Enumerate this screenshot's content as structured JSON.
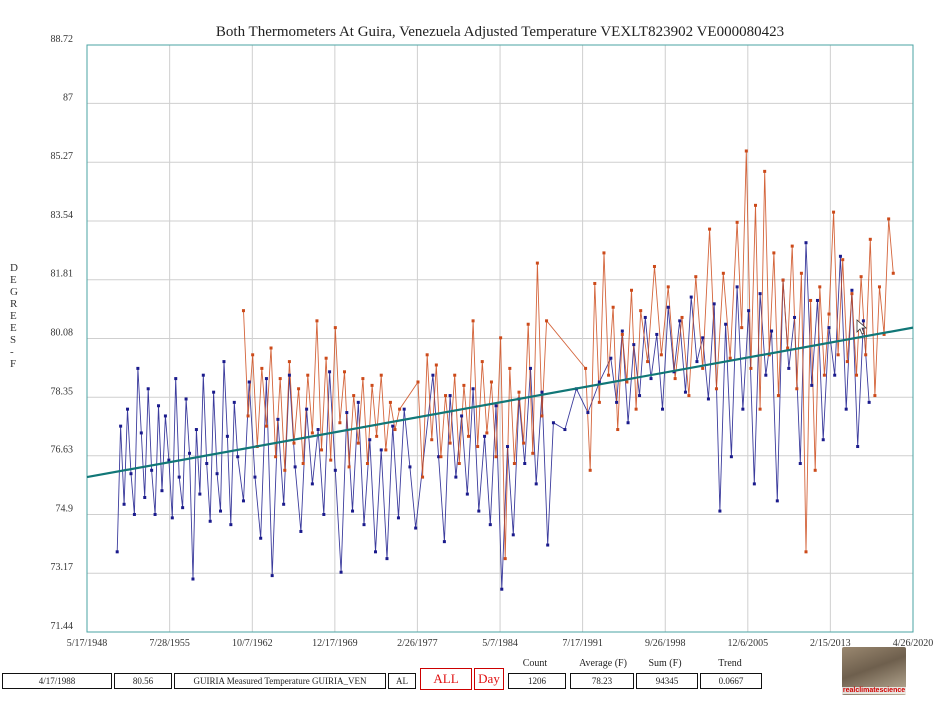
{
  "chart_data": {
    "type": "scatter",
    "title": "Both Thermometers At Guira, Venezuela Adjusted Temperature VEXLT823902 VE000080423",
    "ylabel": "DEGREES - F",
    "ylabel_letters": [
      "D",
      "E",
      "G",
      "R",
      "E",
      "E",
      "S",
      "-",
      "F"
    ],
    "xlabel": "",
    "x_range_years": [
      1948.37,
      2020.32
    ],
    "ylim": [
      71.44,
      88.72
    ],
    "y_ticks": [
      "71.44",
      "73.17",
      "74.9",
      "76.63",
      "78.35",
      "80.08",
      "81.81",
      "83.54",
      "85.27",
      "87",
      "88.72"
    ],
    "x_ticks": [
      {
        "label": "5/17/1948",
        "year": 1948.37
      },
      {
        "label": "7/28/1955",
        "year": 1955.57
      },
      {
        "label": "10/7/1962",
        "year": 1962.77
      },
      {
        "label": "12/17/1969",
        "year": 1969.96
      },
      {
        "label": "2/26/1977",
        "year": 1977.15
      },
      {
        "label": "5/7/1984",
        "year": 1984.35
      },
      {
        "label": "7/17/1991",
        "year": 1991.54
      },
      {
        "label": "9/26/1998",
        "year": 1998.74
      },
      {
        "label": "12/6/2005",
        "year": 2005.93
      },
      {
        "label": "2/15/2013",
        "year": 2013.12
      },
      {
        "label": "4/26/2020",
        "year": 2020.32
      }
    ],
    "grid": true,
    "series": [
      {
        "name": "GUIRIA Measured Temperature GUIRIA_VEN",
        "color": "#1a1a8c",
        "points": [
          [
            1951.0,
            73.8
          ],
          [
            1951.3,
            77.5
          ],
          [
            1951.6,
            75.2
          ],
          [
            1951.9,
            78.0
          ],
          [
            1952.2,
            76.1
          ],
          [
            1952.5,
            74.9
          ],
          [
            1952.8,
            79.2
          ],
          [
            1953.1,
            77.3
          ],
          [
            1953.4,
            75.4
          ],
          [
            1953.7,
            78.6
          ],
          [
            1954.0,
            76.2
          ],
          [
            1954.3,
            74.9
          ],
          [
            1954.6,
            78.1
          ],
          [
            1954.9,
            75.6
          ],
          [
            1955.2,
            77.8
          ],
          [
            1955.5,
            76.5
          ],
          [
            1955.8,
            74.8
          ],
          [
            1956.1,
            78.9
          ],
          [
            1956.4,
            76.0
          ],
          [
            1956.7,
            75.1
          ],
          [
            1957.0,
            78.3
          ],
          [
            1957.3,
            76.7
          ],
          [
            1957.6,
            73.0
          ],
          [
            1957.9,
            77.4
          ],
          [
            1958.2,
            75.5
          ],
          [
            1958.5,
            79.0
          ],
          [
            1958.8,
            76.4
          ],
          [
            1959.1,
            74.7
          ],
          [
            1959.4,
            78.5
          ],
          [
            1959.7,
            76.1
          ],
          [
            1960.0,
            75.0
          ],
          [
            1960.3,
            79.4
          ],
          [
            1960.6,
            77.2
          ],
          [
            1960.9,
            74.6
          ],
          [
            1961.2,
            78.2
          ],
          [
            1961.5,
            76.6
          ],
          [
            1962.0,
            75.3
          ],
          [
            1962.5,
            78.8
          ],
          [
            1963.0,
            76.0
          ],
          [
            1963.5,
            74.2
          ],
          [
            1964.0,
            78.9
          ],
          [
            1964.5,
            73.1
          ],
          [
            1965.0,
            77.7
          ],
          [
            1965.5,
            75.2
          ],
          [
            1966.0,
            79.0
          ],
          [
            1966.5,
            76.3
          ],
          [
            1967.0,
            74.4
          ],
          [
            1967.5,
            78.0
          ],
          [
            1968.0,
            75.8
          ],
          [
            1968.5,
            77.4
          ],
          [
            1969.0,
            74.9
          ],
          [
            1969.5,
            79.1
          ],
          [
            1970.0,
            76.2
          ],
          [
            1970.5,
            73.2
          ],
          [
            1971.0,
            77.9
          ],
          [
            1971.5,
            75.0
          ],
          [
            1972.0,
            78.2
          ],
          [
            1972.5,
            74.6
          ],
          [
            1973.0,
            77.1
          ],
          [
            1973.5,
            73.8
          ],
          [
            1974.0,
            76.8
          ],
          [
            1974.5,
            73.6
          ],
          [
            1975.0,
            77.5
          ],
          [
            1975.5,
            74.8
          ],
          [
            1976.0,
            78.0
          ],
          [
            1976.5,
            76.3
          ],
          [
            1977.0,
            74.5
          ],
          [
            1978.5,
            79.0
          ],
          [
            1979.0,
            76.6
          ],
          [
            1979.5,
            74.1
          ],
          [
            1980.0,
            78.4
          ],
          [
            1980.5,
            76.0
          ],
          [
            1981.0,
            77.8
          ],
          [
            1981.5,
            75.5
          ],
          [
            1982.0,
            78.6
          ],
          [
            1982.5,
            75.0
          ],
          [
            1983.0,
            77.2
          ],
          [
            1983.5,
            74.6
          ],
          [
            1984.0,
            78.1
          ],
          [
            1984.5,
            72.7
          ],
          [
            1985.0,
            76.9
          ],
          [
            1985.5,
            74.3
          ],
          [
            1986.0,
            78.3
          ],
          [
            1986.5,
            76.4
          ],
          [
            1987.0,
            79.2
          ],
          [
            1987.5,
            75.8
          ],
          [
            1988.0,
            78.5
          ],
          [
            1988.5,
            74.0
          ],
          [
            1989.0,
            77.6
          ],
          [
            1990.0,
            77.4
          ],
          [
            1991.0,
            78.6
          ],
          [
            1992.0,
            77.9
          ],
          [
            1993.0,
            78.8
          ],
          [
            1994.0,
            79.5
          ],
          [
            1994.5,
            78.2
          ],
          [
            1995.0,
            80.3
          ],
          [
            1995.5,
            77.6
          ],
          [
            1996.0,
            79.9
          ],
          [
            1996.5,
            78.4
          ],
          [
            1997.0,
            80.7
          ],
          [
            1997.5,
            78.9
          ],
          [
            1998.0,
            80.2
          ],
          [
            1998.5,
            78.0
          ],
          [
            1999.0,
            81.0
          ],
          [
            1999.5,
            79.1
          ],
          [
            2000.0,
            80.6
          ],
          [
            2000.5,
            78.5
          ],
          [
            2001.0,
            81.3
          ],
          [
            2001.5,
            79.4
          ],
          [
            2002.0,
            80.1
          ],
          [
            2002.5,
            78.3
          ],
          [
            2003.0,
            81.1
          ],
          [
            2003.5,
            75.0
          ],
          [
            2004.0,
            80.5
          ],
          [
            2004.5,
            76.6
          ],
          [
            2005.0,
            81.6
          ],
          [
            2005.5,
            78.0
          ],
          [
            2006.0,
            80.9
          ],
          [
            2006.5,
            75.8
          ],
          [
            2007.0,
            81.4
          ],
          [
            2007.5,
            79.0
          ],
          [
            2008.0,
            80.3
          ],
          [
            2008.5,
            75.3
          ],
          [
            2009.0,
            81.8
          ],
          [
            2009.5,
            79.2
          ],
          [
            2010.0,
            80.7
          ],
          [
            2010.5,
            76.4
          ],
          [
            2011.0,
            82.9
          ],
          [
            2011.5,
            78.7
          ],
          [
            2012.0,
            81.2
          ],
          [
            2012.5,
            77.1
          ],
          [
            2013.0,
            80.4
          ],
          [
            2013.5,
            79.0
          ],
          [
            2014.0,
            82.5
          ],
          [
            2014.5,
            78.0
          ],
          [
            2015.0,
            81.5
          ],
          [
            2015.5,
            76.9
          ],
          [
            2016.0,
            80.6
          ],
          [
            2016.5,
            78.2
          ]
        ]
      },
      {
        "name": "VE000080423",
        "color": "#cc4a1a",
        "points": [
          [
            1962.0,
            80.9
          ],
          [
            1962.4,
            77.8
          ],
          [
            1962.8,
            79.6
          ],
          [
            1963.2,
            76.9
          ],
          [
            1963.6,
            79.2
          ],
          [
            1964.0,
            77.5
          ],
          [
            1964.4,
            79.8
          ],
          [
            1964.8,
            76.6
          ],
          [
            1965.2,
            78.9
          ],
          [
            1965.6,
            76.2
          ],
          [
            1966.0,
            79.4
          ],
          [
            1966.4,
            77.0
          ],
          [
            1966.8,
            78.6
          ],
          [
            1967.2,
            76.4
          ],
          [
            1967.6,
            79.0
          ],
          [
            1968.0,
            77.3
          ],
          [
            1968.4,
            80.6
          ],
          [
            1968.8,
            76.8
          ],
          [
            1969.2,
            79.5
          ],
          [
            1969.6,
            76.5
          ],
          [
            1970.0,
            80.4
          ],
          [
            1970.4,
            77.6
          ],
          [
            1970.8,
            79.1
          ],
          [
            1971.2,
            76.3
          ],
          [
            1971.6,
            78.4
          ],
          [
            1972.0,
            77.0
          ],
          [
            1972.4,
            78.9
          ],
          [
            1972.8,
            76.4
          ],
          [
            1973.2,
            78.7
          ],
          [
            1973.6,
            77.2
          ],
          [
            1974.0,
            79.0
          ],
          [
            1974.4,
            76.8
          ],
          [
            1974.8,
            78.2
          ],
          [
            1975.2,
            77.4
          ],
          [
            1975.6,
            78.0
          ],
          [
            1977.2,
            78.8
          ],
          [
            1977.6,
            76.0
          ],
          [
            1978.0,
            79.6
          ],
          [
            1978.4,
            77.1
          ],
          [
            1978.8,
            79.3
          ],
          [
            1979.2,
            76.6
          ],
          [
            1979.6,
            78.4
          ],
          [
            1980.0,
            77.0
          ],
          [
            1980.4,
            79.0
          ],
          [
            1980.8,
            76.4
          ],
          [
            1981.2,
            78.7
          ],
          [
            1981.6,
            77.2
          ],
          [
            1982.0,
            80.6
          ],
          [
            1982.4,
            76.9
          ],
          [
            1982.8,
            79.4
          ],
          [
            1983.2,
            77.3
          ],
          [
            1983.6,
            78.8
          ],
          [
            1984.0,
            76.6
          ],
          [
            1984.4,
            80.1
          ],
          [
            1984.8,
            73.6
          ],
          [
            1985.2,
            79.2
          ],
          [
            1985.6,
            76.4
          ],
          [
            1986.0,
            78.5
          ],
          [
            1986.4,
            77.0
          ],
          [
            1986.8,
            80.5
          ],
          [
            1987.2,
            76.7
          ],
          [
            1987.6,
            82.3
          ],
          [
            1988.0,
            77.8
          ],
          [
            1988.4,
            80.6
          ],
          [
            1991.8,
            79.2
          ],
          [
            1992.2,
            76.2
          ],
          [
            1992.6,
            81.7
          ],
          [
            1993.0,
            78.2
          ],
          [
            1993.4,
            82.6
          ],
          [
            1993.8,
            79.0
          ],
          [
            1994.2,
            81.0
          ],
          [
            1994.6,
            77.4
          ],
          [
            1995.0,
            80.2
          ],
          [
            1995.4,
            78.8
          ],
          [
            1995.8,
            81.5
          ],
          [
            1996.2,
            78.0
          ],
          [
            1996.6,
            80.9
          ],
          [
            1997.2,
            79.4
          ],
          [
            1997.8,
            82.2
          ],
          [
            1998.4,
            79.6
          ],
          [
            1999.0,
            81.6
          ],
          [
            1999.6,
            78.9
          ],
          [
            2000.2,
            80.7
          ],
          [
            2000.8,
            78.4
          ],
          [
            2001.4,
            81.9
          ],
          [
            2002.0,
            79.2
          ],
          [
            2002.6,
            83.3
          ],
          [
            2003.2,
            78.6
          ],
          [
            2003.8,
            82.0
          ],
          [
            2004.4,
            79.5
          ],
          [
            2005.0,
            83.5
          ],
          [
            2005.4,
            80.4
          ],
          [
            2005.8,
            85.6
          ],
          [
            2006.2,
            79.2
          ],
          [
            2006.6,
            84.0
          ],
          [
            2007.0,
            78.0
          ],
          [
            2007.4,
            85.0
          ],
          [
            2007.8,
            79.6
          ],
          [
            2008.2,
            82.6
          ],
          [
            2008.6,
            78.4
          ],
          [
            2009.0,
            81.8
          ],
          [
            2009.4,
            79.8
          ],
          [
            2009.8,
            82.8
          ],
          [
            2010.2,
            78.6
          ],
          [
            2010.6,
            82.0
          ],
          [
            2011.0,
            73.8
          ],
          [
            2011.4,
            81.2
          ],
          [
            2011.8,
            76.2
          ],
          [
            2012.2,
            81.6
          ],
          [
            2012.6,
            79.0
          ],
          [
            2013.0,
            80.8
          ],
          [
            2013.4,
            83.8
          ],
          [
            2013.8,
            79.6
          ],
          [
            2014.2,
            82.4
          ],
          [
            2014.6,
            79.4
          ],
          [
            2015.0,
            81.4
          ],
          [
            2015.4,
            79.0
          ],
          [
            2015.8,
            81.9
          ],
          [
            2016.2,
            79.6
          ],
          [
            2016.6,
            83.0
          ],
          [
            2017.0,
            78.4
          ],
          [
            2017.4,
            81.6
          ],
          [
            2017.8,
            80.2
          ],
          [
            2018.2,
            83.6
          ],
          [
            2018.6,
            82.0
          ]
        ]
      }
    ],
    "trend_line": {
      "color": "#117777",
      "points": [
        [
          1948.37,
          76.0
        ],
        [
          2020.32,
          80.4
        ]
      ]
    },
    "status_bar": {
      "date": "4/17/1988",
      "value": "80.56",
      "station": "GUIRIA Measured Temperature GUIRIA_VEN",
      "code": "AL",
      "all_label": "ALL",
      "day_label": "Day",
      "count_label": "Count",
      "count": "1206",
      "average_label": "Average (F)",
      "average": "78.23",
      "sum_label": "Sum (F)",
      "sum": "94345",
      "trend_label": "Trend",
      "trend": "0.0667"
    },
    "logo_text": "realclimatescience"
  }
}
